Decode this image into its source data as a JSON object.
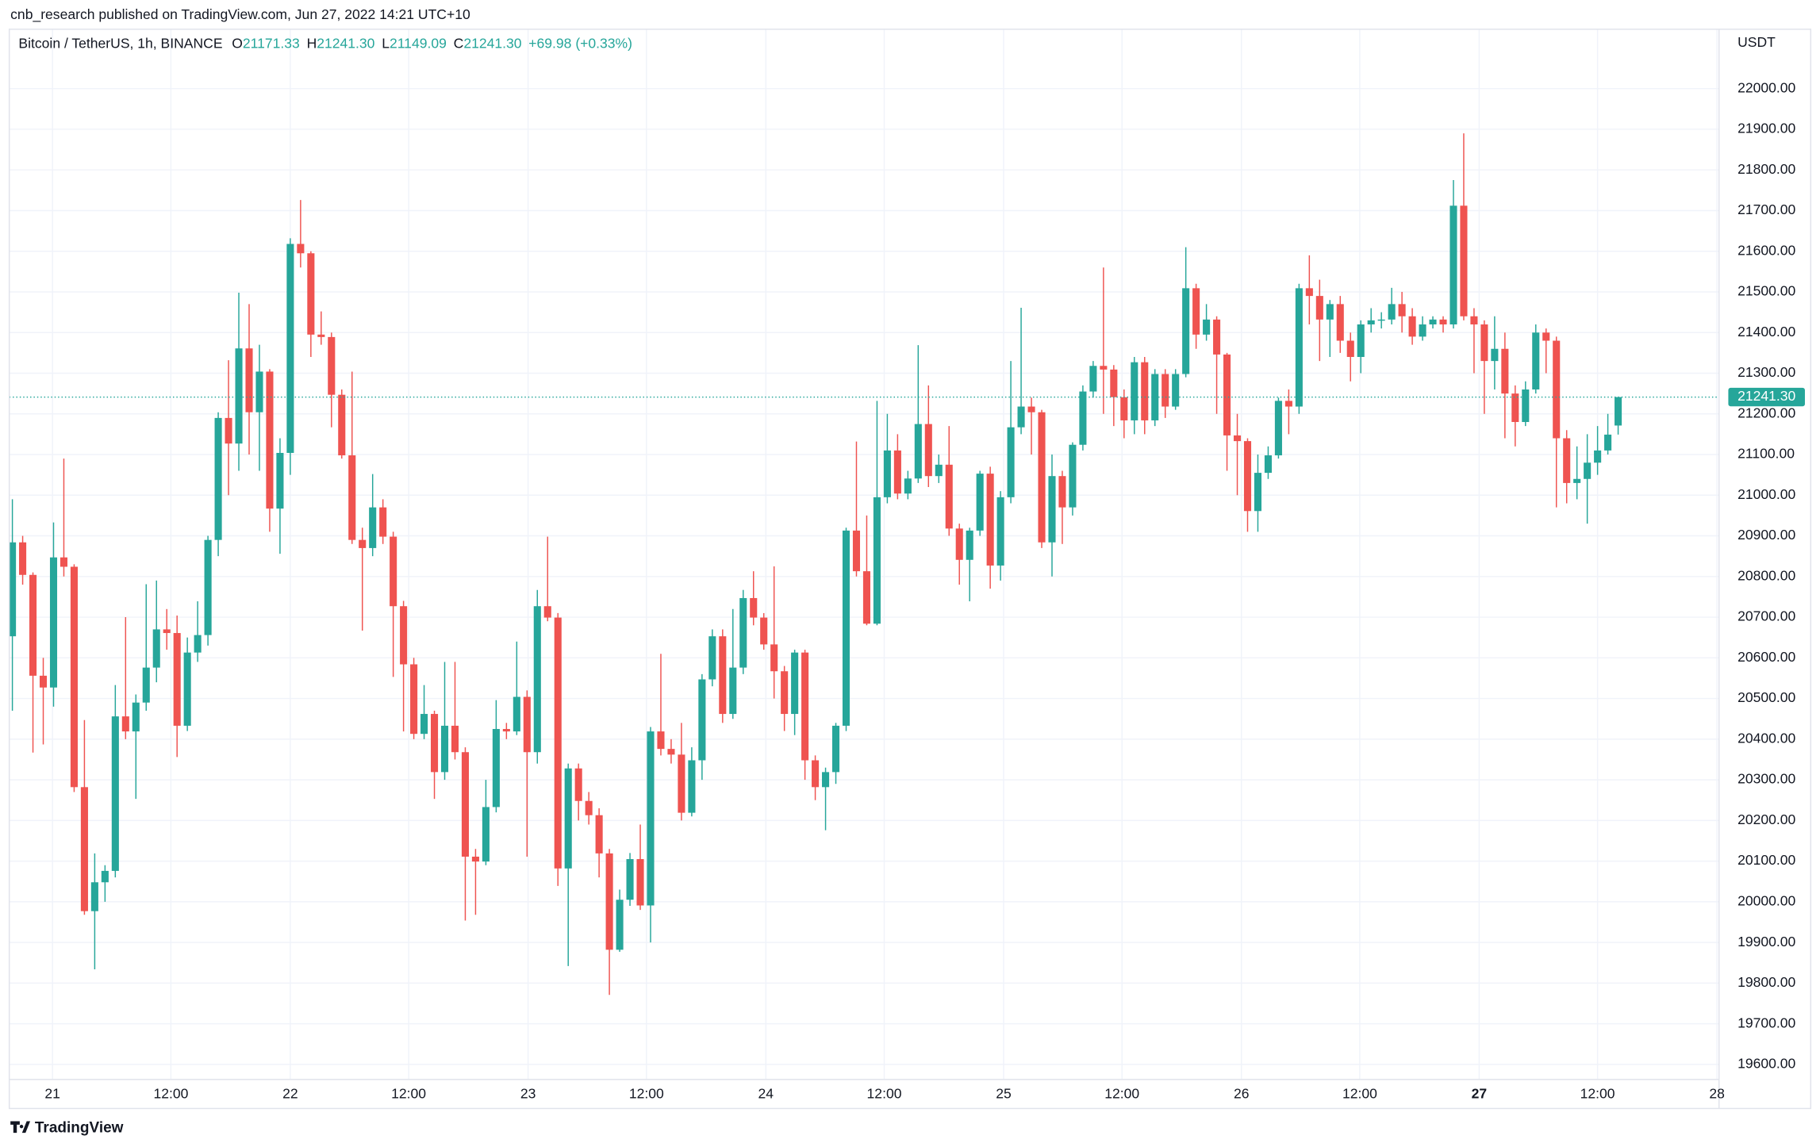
{
  "chart_data": {
    "type": "candlestick",
    "title": "cnb_research published on TradingView.com, Jun 27, 2022 14:21 UTC+10",
    "symbol": "Bitcoin / TetherUS, 1h, BINANCE",
    "ohlc_legend": [
      {
        "key": "O",
        "value": "21171.33"
      },
      {
        "key": "H",
        "value": "21241.30"
      },
      {
        "key": "L",
        "value": "21149.09"
      },
      {
        "key": "C",
        "value": "21241.30"
      }
    ],
    "change": "+69.98 (+0.33%)",
    "y_axis_label": "USDT",
    "brand": "TradingView",
    "up_color": "#26a69a",
    "down_color": "#ef5350",
    "grid": true,
    "last_price": {
      "value": 21241.3,
      "label": "21241.30"
    },
    "ylim": [
      19563,
      22146
    ],
    "yticks": [
      {
        "value": 19600,
        "label": "19600.00"
      },
      {
        "value": 19700,
        "label": "19700.00"
      },
      {
        "value": 19800,
        "label": "19800.00"
      },
      {
        "value": 19900,
        "label": "19900.00"
      },
      {
        "value": 20000,
        "label": "20000.00"
      },
      {
        "value": 20100,
        "label": "20100.00"
      },
      {
        "value": 20200,
        "label": "20200.00"
      },
      {
        "value": 20300,
        "label": "20300.00"
      },
      {
        "value": 20400,
        "label": "20400.00"
      },
      {
        "value": 20500,
        "label": "20500.00"
      },
      {
        "value": 20600,
        "label": "20600.00"
      },
      {
        "value": 20700,
        "label": "20700.00"
      },
      {
        "value": 20800,
        "label": "20800.00"
      },
      {
        "value": 20900,
        "label": "20900.00"
      },
      {
        "value": 21000,
        "label": "21000.00"
      },
      {
        "value": 21100,
        "label": "21100.00"
      },
      {
        "value": 21200,
        "label": "21200.00"
      },
      {
        "value": 21300,
        "label": "21300.00"
      },
      {
        "value": 21400,
        "label": "21400.00"
      },
      {
        "value": 21500,
        "label": "21500.00"
      },
      {
        "value": 21600,
        "label": "21600.00"
      },
      {
        "value": 21700,
        "label": "21700.00"
      },
      {
        "value": 21800,
        "label": "21800.00"
      },
      {
        "value": 21900,
        "label": "21900.00"
      },
      {
        "value": 22000,
        "label": "22000.00"
      }
    ],
    "xlim": [
      -0.3,
      165.8
    ],
    "xticks": [
      {
        "value": 3.9,
        "label": "21"
      },
      {
        "value": 15.4,
        "label": "12:00"
      },
      {
        "value": 27.0,
        "label": "22"
      },
      {
        "value": 38.5,
        "label": "12:00"
      },
      {
        "value": 50.1,
        "label": "23"
      },
      {
        "value": 61.6,
        "label": "12:00"
      },
      {
        "value": 73.2,
        "label": "24"
      },
      {
        "value": 84.7,
        "label": "12:00"
      },
      {
        "value": 96.3,
        "label": "25"
      },
      {
        "value": 107.8,
        "label": "12:00"
      },
      {
        "value": 119.4,
        "label": "26"
      },
      {
        "value": 130.9,
        "label": "12:00"
      },
      {
        "value": 142.5,
        "label": "27"
      },
      {
        "value": 154.0,
        "label": "12:00"
      },
      {
        "value": 165.6,
        "label": "28"
      }
    ],
    "candles": [
      [
        20653,
        20990,
        20470,
        20884
      ],
      [
        20884,
        20900,
        20780,
        20804
      ],
      [
        20804,
        20810,
        20367,
        20556
      ],
      [
        20556,
        20600,
        20387,
        20527
      ],
      [
        20527,
        20933,
        20480,
        20847
      ],
      [
        20847,
        21090,
        20800,
        20824
      ],
      [
        20824,
        20830,
        20270,
        20282
      ],
      [
        20282,
        20447,
        19968,
        19977
      ],
      [
        19977,
        20119,
        19834,
        20048
      ],
      [
        20048,
        20090,
        20000,
        20076
      ],
      [
        20076,
        20533,
        20060,
        20456
      ],
      [
        20456,
        20700,
        20400,
        20419
      ],
      [
        20419,
        20510,
        20253,
        20490
      ],
      [
        20490,
        20781,
        20470,
        20576
      ],
      [
        20576,
        20790,
        20540,
        20670
      ],
      [
        20670,
        20720,
        20620,
        20661
      ],
      [
        20661,
        20704,
        20356,
        20433
      ],
      [
        20433,
        20650,
        20420,
        20613
      ],
      [
        20613,
        20739,
        20590,
        20656
      ],
      [
        20656,
        20900,
        20630,
        20890
      ],
      [
        20890,
        21204,
        20850,
        21190
      ],
      [
        21190,
        21332,
        21000,
        21127
      ],
      [
        21127,
        21498,
        21060,
        21361
      ],
      [
        21361,
        21470,
        21100,
        21204
      ],
      [
        21204,
        21370,
        21060,
        21304
      ],
      [
        21304,
        21310,
        20910,
        20967
      ],
      [
        20967,
        21140,
        20856,
        21104
      ],
      [
        21104,
        21632,
        21050,
        21618
      ],
      [
        21618,
        21726,
        21560,
        21595
      ],
      [
        21595,
        21600,
        21340,
        21395
      ],
      [
        21395,
        21452,
        21370,
        21389
      ],
      [
        21389,
        21400,
        21167,
        21247
      ],
      [
        21247,
        21260,
        21090,
        21098
      ],
      [
        21098,
        21304,
        20880,
        20890
      ],
      [
        20890,
        20920,
        20667,
        20870
      ],
      [
        20870,
        21052,
        20850,
        20970
      ],
      [
        20970,
        20990,
        20880,
        20898
      ],
      [
        20898,
        20910,
        20553,
        20727
      ],
      [
        20727,
        20740,
        20419,
        20584
      ],
      [
        20584,
        20600,
        20400,
        20413
      ],
      [
        20413,
        20533,
        20400,
        20462
      ],
      [
        20462,
        20470,
        20253,
        20319
      ],
      [
        20319,
        20590,
        20300,
        20433
      ],
      [
        20433,
        20590,
        20350,
        20368
      ],
      [
        20368,
        20380,
        19954,
        20111
      ],
      [
        20111,
        20130,
        19968,
        20099
      ],
      [
        20099,
        20300,
        20090,
        20233
      ],
      [
        20233,
        20496,
        20220,
        20425
      ],
      [
        20425,
        20440,
        20400,
        20419
      ],
      [
        20419,
        20640,
        20410,
        20504
      ],
      [
        20504,
        20520,
        20111,
        20368
      ],
      [
        20368,
        20767,
        20340,
        20727
      ],
      [
        20727,
        20898,
        20690,
        20699
      ],
      [
        20699,
        20710,
        20039,
        20082
      ],
      [
        20082,
        20340,
        19842,
        20328
      ],
      [
        20328,
        20340,
        20200,
        20248
      ],
      [
        20248,
        20270,
        20190,
        20213
      ],
      [
        20213,
        20230,
        20060,
        20119
      ],
      [
        20119,
        20130,
        19771,
        19882
      ],
      [
        19882,
        20030,
        19877,
        20005
      ],
      [
        20005,
        20120,
        19990,
        20105
      ],
      [
        20105,
        20190,
        19980,
        19991
      ],
      [
        19991,
        20430,
        19900,
        20419
      ],
      [
        20419,
        20610,
        20360,
        20376
      ],
      [
        20376,
        20400,
        20340,
        20362
      ],
      [
        20362,
        20440,
        20200,
        20219
      ],
      [
        20219,
        20380,
        20210,
        20348
      ],
      [
        20348,
        20560,
        20300,
        20547
      ],
      [
        20547,
        20670,
        20530,
        20653
      ],
      [
        20653,
        20670,
        20440,
        20462
      ],
      [
        20462,
        20720,
        20450,
        20576
      ],
      [
        20576,
        20767,
        20560,
        20747
      ],
      [
        20747,
        20813,
        20680,
        20699
      ],
      [
        20699,
        20710,
        20620,
        20633
      ],
      [
        20633,
        20825,
        20500,
        20567
      ],
      [
        20567,
        20580,
        20420,
        20462
      ],
      [
        20462,
        20620,
        20410,
        20613
      ],
      [
        20613,
        20620,
        20300,
        20348
      ],
      [
        20348,
        20360,
        20250,
        20282
      ],
      [
        20282,
        20330,
        20176,
        20319
      ],
      [
        20319,
        20440,
        20290,
        20433
      ],
      [
        20433,
        20920,
        20420,
        20913
      ],
      [
        20913,
        21132,
        20800,
        20813
      ],
      [
        20813,
        20950,
        20680,
        20684
      ],
      [
        20684,
        21232,
        20680,
        20995
      ],
      [
        20995,
        21200,
        20980,
        21110
      ],
      [
        21110,
        21150,
        20990,
        21004
      ],
      [
        21004,
        21060,
        20990,
        21041
      ],
      [
        21041,
        21369,
        21030,
        21175
      ],
      [
        21175,
        21270,
        21020,
        21047
      ],
      [
        21047,
        21100,
        21030,
        21075
      ],
      [
        21075,
        21170,
        20900,
        20918
      ],
      [
        20918,
        20930,
        20780,
        20841
      ],
      [
        20841,
        20920,
        20739,
        20913
      ],
      [
        20913,
        21060,
        20900,
        21053
      ],
      [
        21053,
        21070,
        20770,
        20827
      ],
      [
        20827,
        21010,
        20790,
        20995
      ],
      [
        20995,
        21330,
        20980,
        21167
      ],
      [
        21167,
        21461,
        21150,
        21218
      ],
      [
        21218,
        21240,
        21100,
        21204
      ],
      [
        21204,
        21210,
        20870,
        20884
      ],
      [
        20884,
        21100,
        20800,
        21047
      ],
      [
        21047,
        21060,
        20880,
        20970
      ],
      [
        20970,
        21130,
        20950,
        21124
      ],
      [
        21124,
        21270,
        21110,
        21255
      ],
      [
        21255,
        21330,
        21240,
        21318
      ],
      [
        21318,
        21560,
        21200,
        21309
      ],
      [
        21309,
        21320,
        21170,
        21241
      ],
      [
        21241,
        21260,
        21140,
        21184
      ],
      [
        21184,
        21340,
        21150,
        21327
      ],
      [
        21327,
        21340,
        21150,
        21184
      ],
      [
        21184,
        21310,
        21170,
        21298
      ],
      [
        21298,
        21310,
        21190,
        21218
      ],
      [
        21218,
        21310,
        21210,
        21298
      ],
      [
        21298,
        21610,
        21290,
        21509
      ],
      [
        21509,
        21520,
        21360,
        21395
      ],
      [
        21395,
        21470,
        21380,
        21432
      ],
      [
        21432,
        21440,
        21200,
        21346
      ],
      [
        21346,
        21350,
        21060,
        21147
      ],
      [
        21147,
        21200,
        21000,
        21133
      ],
      [
        21133,
        21140,
        20910,
        20961
      ],
      [
        20961,
        21100,
        20910,
        21055
      ],
      [
        21055,
        21120,
        21040,
        21098
      ],
      [
        21098,
        21240,
        21090,
        21232
      ],
      [
        21232,
        21260,
        21150,
        21218
      ],
      [
        21218,
        21520,
        21200,
        21509
      ],
      [
        21509,
        21590,
        21420,
        21490
      ],
      [
        21490,
        21530,
        21330,
        21432
      ],
      [
        21432,
        21480,
        21340,
        21470
      ],
      [
        21470,
        21490,
        21350,
        21380
      ],
      [
        21380,
        21400,
        21280,
        21340
      ],
      [
        21340,
        21430,
        21300,
        21420
      ],
      [
        21420,
        21460,
        21400,
        21430
      ],
      [
        21430,
        21450,
        21410,
        21432
      ],
      [
        21432,
        21510,
        21420,
        21470
      ],
      [
        21470,
        21500,
        21400,
        21440
      ],
      [
        21440,
        21460,
        21370,
        21390
      ],
      [
        21390,
        21440,
        21380,
        21420
      ],
      [
        21420,
        21440,
        21410,
        21432
      ],
      [
        21432,
        21440,
        21400,
        21420
      ],
      [
        21420,
        21775,
        21410,
        21712
      ],
      [
        21712,
        21890,
        21430,
        21440
      ],
      [
        21440,
        21460,
        21300,
        21420
      ],
      [
        21420,
        21430,
        21200,
        21330
      ],
      [
        21330,
        21440,
        21260,
        21360
      ],
      [
        21360,
        21400,
        21140,
        21250
      ],
      [
        21250,
        21270,
        21120,
        21180
      ],
      [
        21180,
        21280,
        21170,
        21260
      ],
      [
        21260,
        21420,
        21250,
        21400
      ],
      [
        21400,
        21410,
        21300,
        21380
      ],
      [
        21380,
        21390,
        20970,
        21140
      ],
      [
        21140,
        21160,
        20980,
        21030
      ],
      [
        21030,
        21120,
        20990,
        21040
      ],
      [
        21040,
        21150,
        20930,
        21080
      ],
      [
        21080,
        21170,
        21050,
        21110
      ],
      [
        21110,
        21200,
        21100,
        21149
      ],
      [
        21171.33,
        21241.3,
        21149.09,
        21241.3
      ]
    ]
  }
}
